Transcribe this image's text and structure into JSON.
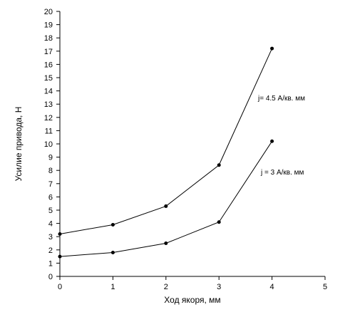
{
  "chart_data": {
    "type": "line",
    "title": "",
    "xlabel": "Ход якоря, мм",
    "ylabel": "Усилие привода, Н",
    "xlim": [
      0,
      5
    ],
    "ylim": [
      0,
      20
    ],
    "x_ticks": [
      "0",
      "1",
      "2",
      "3",
      "4",
      "5"
    ],
    "y_ticks": [
      "0",
      "1",
      "2",
      "3",
      "4",
      "5",
      "6",
      "7",
      "8",
      "9",
      "10",
      "11",
      "12",
      "13",
      "14",
      "15",
      "16",
      "17",
      "18",
      "19",
      "20"
    ],
    "grid": false,
    "legend": "none",
    "series": [
      {
        "name": "j= 4.5 А/кв. мм",
        "x": [
          0,
          1,
          2,
          3,
          4
        ],
        "values": [
          3.2,
          3.9,
          5.3,
          8.4,
          17.2
        ]
      },
      {
        "name": "j = 3 А/кв. мм",
        "x": [
          0,
          1,
          2,
          3,
          4
        ],
        "values": [
          1.5,
          1.8,
          2.5,
          4.1,
          10.2
        ]
      }
    ]
  }
}
